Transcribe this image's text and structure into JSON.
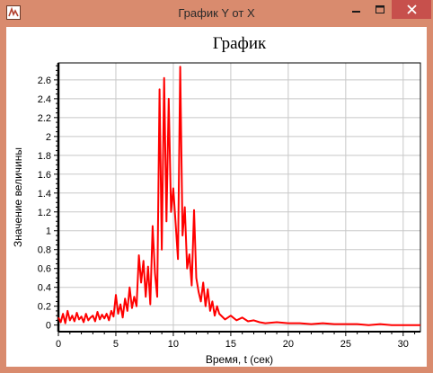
{
  "window": {
    "title": "График Y от X",
    "icon": "app-icon",
    "buttons": {
      "minimize": "minimize-icon",
      "maximize": "maximize-icon",
      "close": "close-icon"
    },
    "colors": {
      "frame": "#d98b6e",
      "close": "#c7504c"
    }
  },
  "chart_data": {
    "type": "line",
    "title": "График",
    "xlabel": "Время, t (сек)",
    "ylabel": "Значение величины",
    "xlim": [
      0,
      31.5
    ],
    "ylim": [
      -0.07,
      2.78
    ],
    "xticks": [
      0,
      5,
      10,
      15,
      20,
      25,
      30
    ],
    "yticks": [
      0,
      0.2,
      0.4,
      0.6,
      0.8,
      1,
      1.2,
      1.4,
      1.6,
      1.8,
      2,
      2.2,
      2.4,
      2.6
    ],
    "grid": true,
    "series": [
      {
        "color": "#ff0000",
        "x": [
          0.0,
          0.2,
          0.4,
          0.6,
          0.8,
          1.0,
          1.2,
          1.4,
          1.6,
          1.8,
          2.0,
          2.2,
          2.4,
          2.6,
          2.8,
          3.0,
          3.2,
          3.4,
          3.6,
          3.8,
          4.0,
          4.2,
          4.4,
          4.6,
          4.8,
          5.0,
          5.2,
          5.4,
          5.6,
          5.8,
          6.0,
          6.2,
          6.4,
          6.6,
          6.8,
          7.0,
          7.2,
          7.4,
          7.6,
          7.8,
          8.0,
          8.2,
          8.4,
          8.6,
          8.8,
          9.0,
          9.2,
          9.4,
          9.6,
          9.8,
          10.0,
          10.2,
          10.4,
          10.6,
          10.8,
          11.0,
          11.2,
          11.4,
          11.6,
          11.8,
          12.0,
          12.2,
          12.4,
          12.6,
          12.8,
          13.0,
          13.2,
          13.4,
          13.6,
          13.8,
          14.0,
          14.5,
          15.0,
          15.5,
          16.0,
          16.5,
          17.0,
          17.5,
          18.0,
          19.0,
          20.0,
          21.0,
          22.0,
          23.0,
          24.0,
          25.0,
          26.0,
          27.0,
          28.0,
          29.0,
          30.0,
          31.5
        ],
        "y": [
          0.08,
          0.03,
          0.12,
          0.02,
          0.15,
          0.05,
          0.1,
          0.04,
          0.13,
          0.06,
          0.09,
          0.03,
          0.12,
          0.05,
          0.08,
          0.1,
          0.04,
          0.14,
          0.06,
          0.11,
          0.07,
          0.12,
          0.05,
          0.15,
          0.09,
          0.32,
          0.12,
          0.22,
          0.08,
          0.28,
          0.15,
          0.4,
          0.18,
          0.3,
          0.2,
          0.74,
          0.45,
          0.68,
          0.3,
          0.62,
          0.22,
          1.05,
          0.55,
          0.3,
          2.5,
          0.8,
          2.62,
          1.1,
          2.4,
          1.2,
          1.45,
          1.08,
          0.7,
          2.74,
          0.95,
          1.25,
          0.6,
          0.75,
          0.42,
          1.22,
          0.5,
          0.35,
          0.25,
          0.45,
          0.2,
          0.38,
          0.15,
          0.25,
          0.1,
          0.2,
          0.12,
          0.06,
          0.1,
          0.05,
          0.08,
          0.04,
          0.05,
          0.03,
          0.02,
          0.03,
          0.02,
          0.02,
          0.01,
          0.02,
          0.01,
          0.01,
          0.01,
          0.0,
          0.01,
          0.0,
          0.0,
          0.0
        ]
      }
    ]
  }
}
